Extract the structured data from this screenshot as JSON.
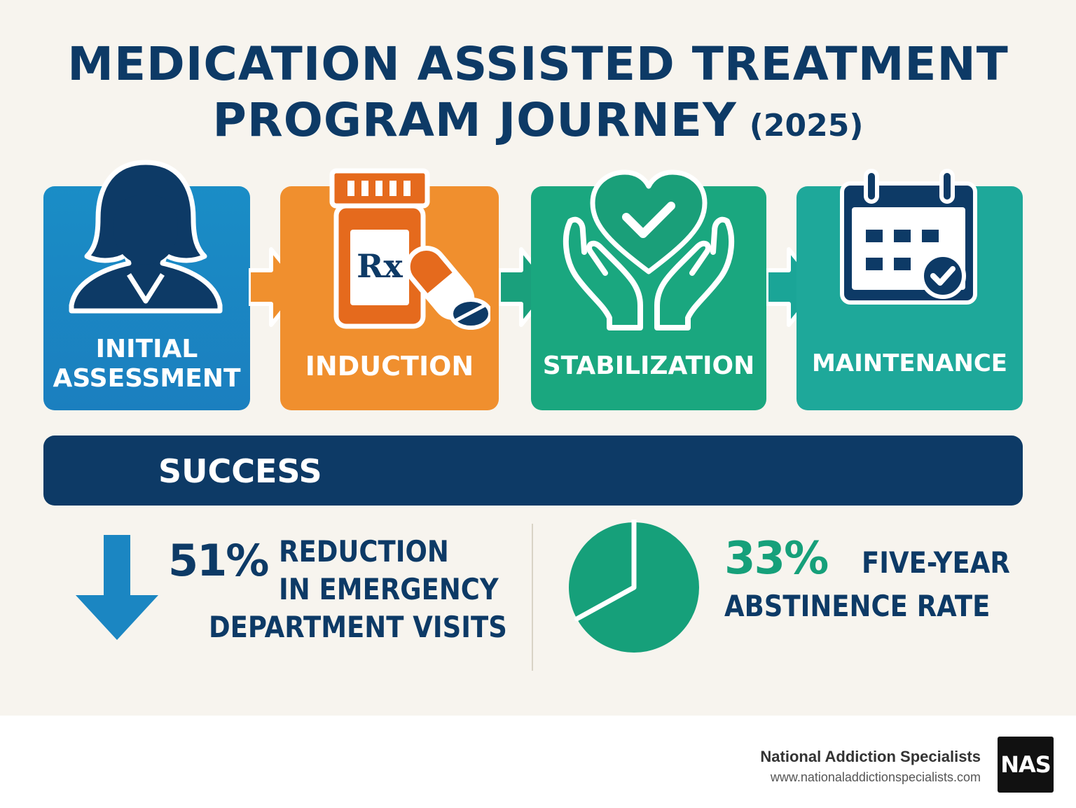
{
  "title": {
    "line1": "MEDICATION ASSISTED TREATMENT",
    "line2": "PROGRAM JOURNEY",
    "year": "(2025)"
  },
  "colors": {
    "navy": "#0d3a66",
    "assessment": "#1b8ac4",
    "induction": "#f0902e",
    "induction_dark": "#e56a1d",
    "stabilization": "#19a67d",
    "maintenance": "#1aa597",
    "success_green": "#16a07a"
  },
  "steps": [
    {
      "label_line1": "INITIAL",
      "label_line2": "ASSESSMENT",
      "icon": "person-icon"
    },
    {
      "label": "INDUCTION",
      "icon": "prescription-bottle-icon",
      "icon_text": "Rx"
    },
    {
      "label": "STABILIZATION",
      "icon": "hands-heart-check-icon"
    },
    {
      "label": "MAINTENANCE",
      "icon": "calendar-check-icon"
    }
  ],
  "success": {
    "label": "SUCCESS"
  },
  "stats": [
    {
      "value": "51%",
      "line1": "REDUCTION",
      "line2": "IN EMERGENCY",
      "line3": "DEPARTMENT VISITS",
      "icon": "down-arrow-icon"
    },
    {
      "value": "33%",
      "line1": "FIVE-YEAR",
      "line2": "ABSTINENCE RATE",
      "icon": "pie-chart-icon",
      "fraction": 0.67
    }
  ],
  "footer": {
    "company": "National Addiction Specialists",
    "website": "www.nationaladdictionspecialists.com",
    "logo_text": "NAS"
  }
}
